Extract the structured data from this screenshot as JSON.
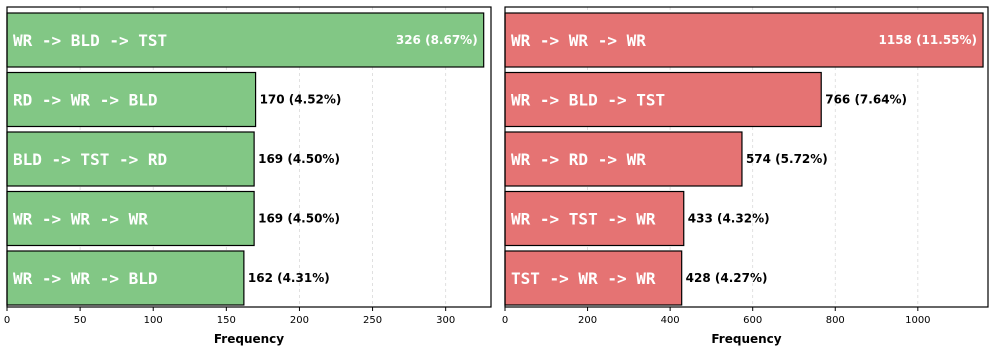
{
  "chart_data": [
    {
      "type": "bar",
      "orientation": "horizontal",
      "categories": [
        "WR -> BLD -> TST",
        "RD -> WR -> BLD",
        "BLD -> TST -> RD",
        "WR -> WR -> WR",
        "WR -> WR -> BLD"
      ],
      "values": [
        326,
        170,
        169,
        169,
        162
      ],
      "value_labels": [
        "326 (8.67%)",
        "170 (4.52%)",
        "169 (4.50%)",
        "169 (4.50%)",
        "162 (4.31%)"
      ],
      "xlabel": "Frequency",
      "xlim": [
        0,
        331
      ],
      "xticks": [
        0,
        50,
        100,
        150,
        200,
        250,
        300
      ],
      "grid": "x-dashed",
      "color": "#82c785"
    },
    {
      "type": "bar",
      "orientation": "horizontal",
      "categories": [
        "WR -> WR -> WR",
        "WR -> BLD -> TST",
        "WR -> RD -> WR",
        "WR -> TST -> WR",
        "TST -> WR -> WR"
      ],
      "values": [
        1158,
        766,
        574,
        433,
        428
      ],
      "value_labels": [
        "1158 (11.55%)",
        "766 (7.64%)",
        "574 (5.72%)",
        "433 (4.32%)",
        "428 (4.27%)"
      ],
      "xlabel": "Frequency",
      "xlim": [
        0,
        1170
      ],
      "xticks": [
        0,
        200,
        400,
        600,
        800,
        1000
      ],
      "grid": "x-dashed",
      "color": "#e57373"
    }
  ]
}
